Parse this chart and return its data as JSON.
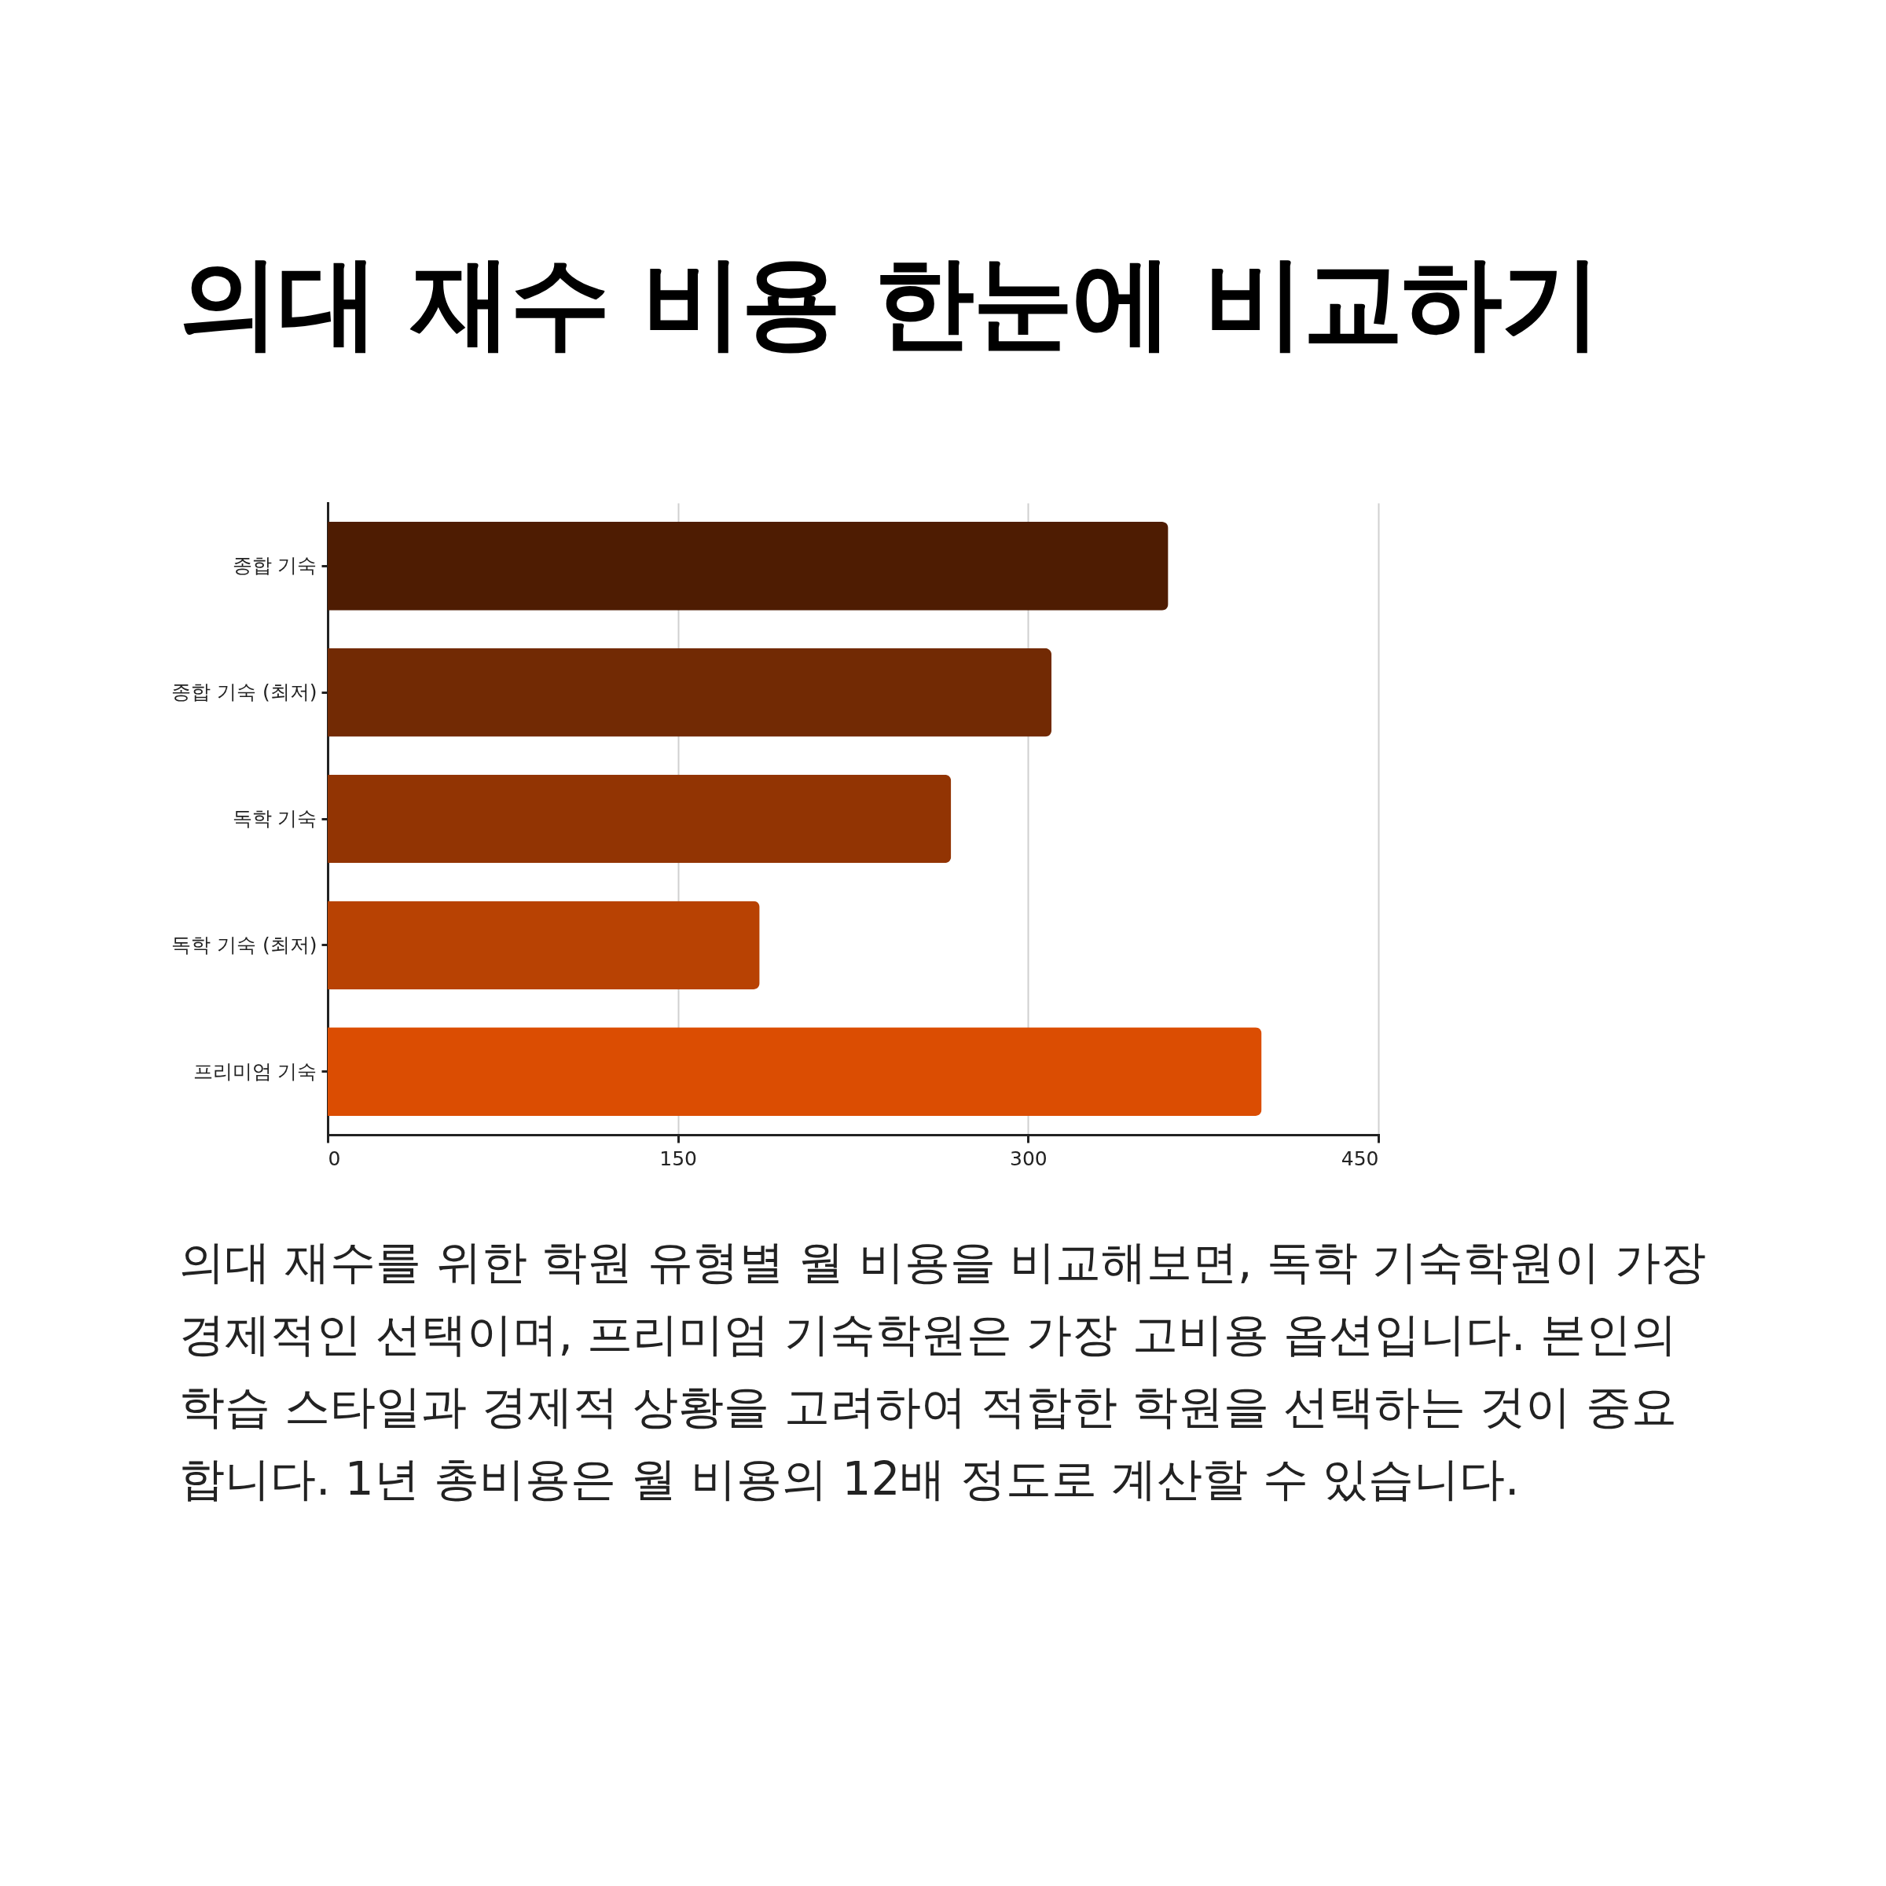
{
  "chart_data": {
    "type": "bar",
    "orientation": "horizontal",
    "title": "의대 재수 비용 한눈에 비교하기",
    "categories": [
      "종합 기숙",
      "종합 기숙 (최저)",
      "독학 기숙",
      "독학 기숙 (최저)",
      "프리미엄 기숙"
    ],
    "values": [
      360,
      310,
      267,
      185,
      400
    ],
    "colors": [
      "#4e1c02",
      "#722a04",
      "#923403",
      "#b84203",
      "#db4d02"
    ],
    "xlim": [
      0,
      450
    ],
    "xticks": [
      0,
      150,
      300,
      450
    ],
    "grid": "x",
    "annotations": [
      "의대 재수를 위한 학원 유형별 월 비용을 비교해보면, 독학 기숙학원이 가장 경제적인 선택이며, 프리미엄 기숙학원은 가장 고비용 옵션입니다. 본인의 학습 스타일과 경제적 상황을 고려하여 적합한 학원을 선택하는 것이 중요합니다. 1년 총비용은 월 비용의 12배 정도로 계산할 수 있습니다."
    ]
  }
}
